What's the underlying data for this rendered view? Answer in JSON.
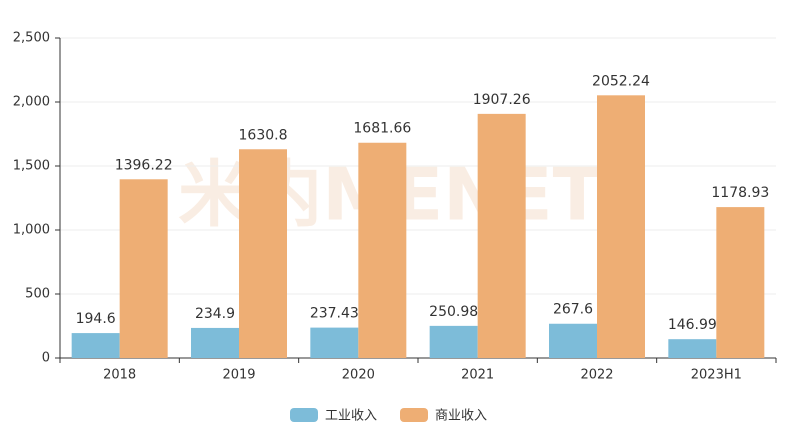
{
  "chart_data": {
    "type": "bar",
    "watermark": "米内MENET",
    "categories": [
      "2018",
      "2019",
      "2020",
      "2021",
      "2022",
      "2023H1"
    ],
    "series": [
      {
        "name": "工业收入",
        "color": "#7dbcd9",
        "values": [
          194.6,
          234.9,
          237.43,
          250.98,
          267.6,
          146.99
        ]
      },
      {
        "name": "商业收入",
        "color": "#eeae74",
        "values": [
          1396.22,
          1630.8,
          1681.66,
          1907.26,
          2052.24,
          1178.93
        ]
      }
    ],
    "ylim": [
      0,
      2500
    ],
    "yticks": [
      0,
      500,
      {
        "value": 1000,
        "label": "1,000"
      },
      {
        "value": 1500,
        "label": "1,500"
      },
      {
        "value": 2000,
        "label": "2,000"
      },
      {
        "value": 2500,
        "label": "2,500"
      }
    ],
    "grid": true
  }
}
